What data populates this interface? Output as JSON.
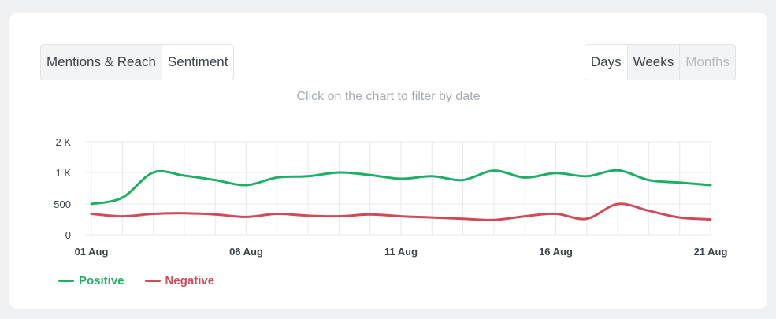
{
  "toolbar": {
    "view_tabs": [
      "Mentions & Reach",
      "Sentiment"
    ],
    "period_tabs": [
      "Days",
      "Weeks",
      "Months"
    ]
  },
  "hint": "Click on the chart to filter by date",
  "colors": {
    "positive": "#1fae66",
    "negative": "#d14a58",
    "grid": "#e6e8eb"
  },
  "chart_data": {
    "type": "line",
    "x": [
      "01 Aug",
      "02 Aug",
      "03 Aug",
      "04 Aug",
      "05 Aug",
      "06 Aug",
      "07 Aug",
      "08 Aug",
      "09 Aug",
      "10 Aug",
      "11 Aug",
      "12 Aug",
      "13 Aug",
      "14 Aug",
      "15 Aug",
      "16 Aug",
      "17 Aug",
      "18 Aug",
      "19 Aug",
      "20 Aug",
      "21 Aug"
    ],
    "x_tick_labels": [
      "01 Aug",
      "06 Aug",
      "11 Aug",
      "16 Aug",
      "21 Aug"
    ],
    "y_tick_labels": [
      "0",
      "500",
      "1 K",
      "2 K"
    ],
    "ylim": [
      0,
      1500
    ],
    "grid": true,
    "legend_position": "bottom-left",
    "series": [
      {
        "name": "Positive",
        "color": "#1fae66",
        "values": [
          500,
          600,
          1000,
          950,
          880,
          800,
          920,
          940,
          1000,
          960,
          900,
          940,
          880,
          1060,
          920,
          990,
          940,
          1070,
          880,
          840,
          800
        ]
      },
      {
        "name": "Negative",
        "color": "#d14a58",
        "values": [
          340,
          300,
          340,
          350,
          330,
          290,
          340,
          310,
          300,
          330,
          300,
          280,
          260,
          240,
          300,
          340,
          260,
          500,
          390,
          280,
          250
        ]
      }
    ]
  }
}
